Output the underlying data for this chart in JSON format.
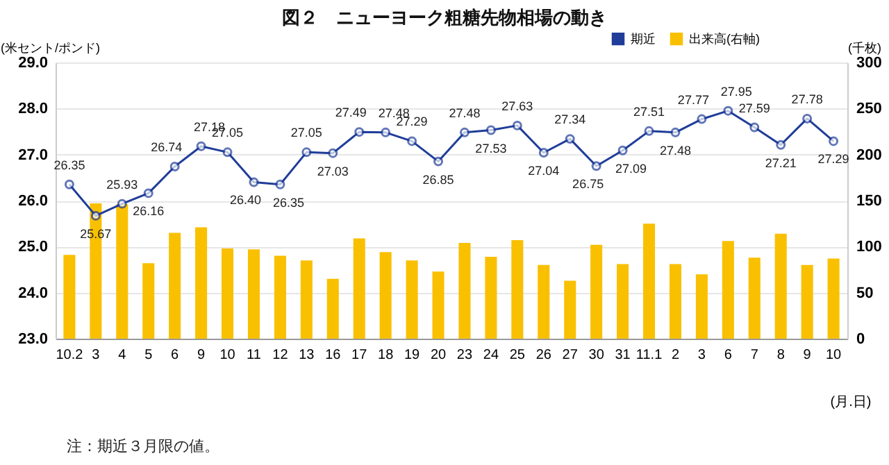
{
  "chart_data": {
    "type": "line",
    "title": "図２　ニューヨーク粗糖先物相場の動き",
    "ylabel": "(米セント/ポンド)",
    "y2label": "(千枚)",
    "xlabel": "(月.日)",
    "categories": [
      "10.2",
      "3",
      "4",
      "5",
      "6",
      "9",
      "10",
      "11",
      "12",
      "13",
      "16",
      "17",
      "18",
      "19",
      "20",
      "23",
      "24",
      "25",
      "26",
      "27",
      "30",
      "31",
      "11.1",
      "2",
      "3",
      "6",
      "7",
      "8",
      "9",
      "10"
    ],
    "series": [
      {
        "name": "期近",
        "color": "#1f3d99",
        "values": [
          26.35,
          25.67,
          25.93,
          26.16,
          26.74,
          27.18,
          27.05,
          26.4,
          26.35,
          27.05,
          27.03,
          27.49,
          27.48,
          27.29,
          26.85,
          27.48,
          27.53,
          27.63,
          27.04,
          27.34,
          26.75,
          27.09,
          27.51,
          27.48,
          27.77,
          27.95,
          27.59,
          27.21,
          27.78,
          27.29
        ],
        "value_labels": [
          "26.35",
          "25.67",
          "25.93",
          "26.16",
          "26.74",
          "27.18",
          "27.05",
          "26.40",
          "26.35",
          "27.05",
          "27.03",
          "27.49",
          "27.48",
          "27.29",
          "26.85",
          "27.48",
          "27.53",
          "27.63",
          "27.04",
          "27.34",
          "26.75",
          "27.09",
          "27.51",
          "27.48",
          "27.77",
          "27.95",
          "27.59",
          "27.21",
          "27.78",
          "27.29"
        ]
      },
      {
        "name": "出来高(右軸)",
        "type": "bar",
        "axis": "y2",
        "color": "#f9c000",
        "values": [
          91,
          147,
          146,
          82,
          115,
          121,
          98,
          97,
          90,
          85,
          65,
          109,
          94,
          85,
          73,
          104,
          89,
          107,
          80,
          63,
          102,
          81,
          125,
          81,
          70,
          106,
          88,
          114,
          80,
          87
        ]
      }
    ],
    "ylim": [
      23,
      29
    ],
    "yticks": [
      {
        "value": 23,
        "label": "23.0"
      },
      {
        "value": 24,
        "label": "24.0"
      },
      {
        "value": 25,
        "label": "25.0"
      },
      {
        "value": 26,
        "label": "26.0"
      },
      {
        "value": 27,
        "label": "27.0"
      },
      {
        "value": 28,
        "label": "28.0"
      },
      {
        "value": 29,
        "label": "29.0"
      }
    ],
    "y2lim": [
      0,
      300
    ],
    "y2ticks": [
      0,
      50,
      100,
      150,
      200,
      250,
      300
    ],
    "grid": "y",
    "legend": "top right",
    "marker": "circle",
    "line_style": "solid",
    "annotations": [
      "注：期近３月限の値。"
    ]
  }
}
